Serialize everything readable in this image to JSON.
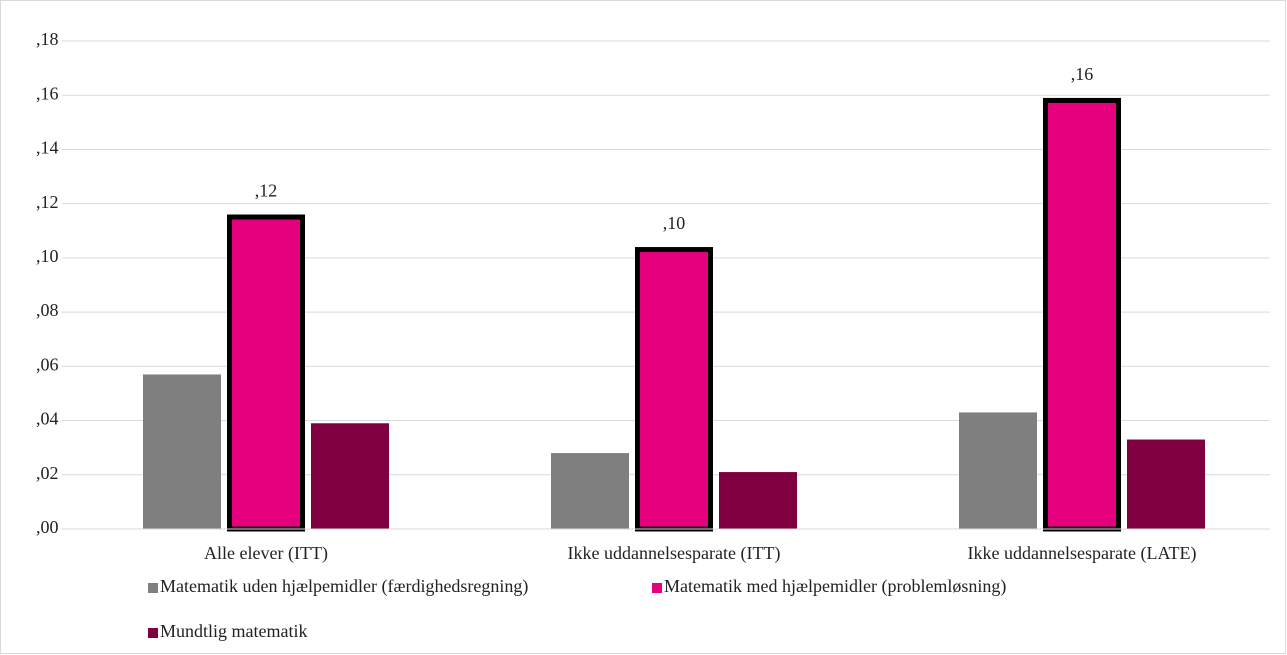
{
  "chart_data": {
    "type": "bar",
    "categories": [
      "Alle elever (ITT)",
      "Ikke uddannelsesparate (ITT)",
      "Ikke uddannelsesparate (LATE)"
    ],
    "series": [
      {
        "name": "Matematik uden hjælpemidler (færdighedsregning)",
        "color": "#7f7f7f",
        "values": [
          0.057,
          0.028,
          0.043
        ]
      },
      {
        "name": "Matematik med hjælpemidler (problemløsning)",
        "color": "#e6007e",
        "edgecolor": "#000000",
        "values": [
          0.116,
          0.104,
          0.159
        ],
        "value_labels": [
          ",12",
          ",10",
          ",16"
        ]
      },
      {
        "name": "Mundtlig matematik",
        "color": "#7f0040",
        "values": [
          0.039,
          0.021,
          0.033
        ]
      }
    ],
    "ylim": [
      0,
      0.18
    ],
    "yticks": [
      {
        "value": 0,
        "label": ",00"
      },
      {
        "value": 0.02,
        "label": ",02"
      },
      {
        "value": 0.04,
        "label": ",04"
      },
      {
        "value": 0.06,
        "label": ",06"
      },
      {
        "value": 0.08,
        "label": ",08"
      },
      {
        "value": 0.1,
        "label": ",10"
      },
      {
        "value": 0.12,
        "label": ",12"
      },
      {
        "value": 0.14,
        "label": ",14"
      },
      {
        "value": 0.16,
        "label": ",16"
      },
      {
        "value": 0.18,
        "label": ",18"
      }
    ],
    "grid": true,
    "legend": "bottom"
  }
}
